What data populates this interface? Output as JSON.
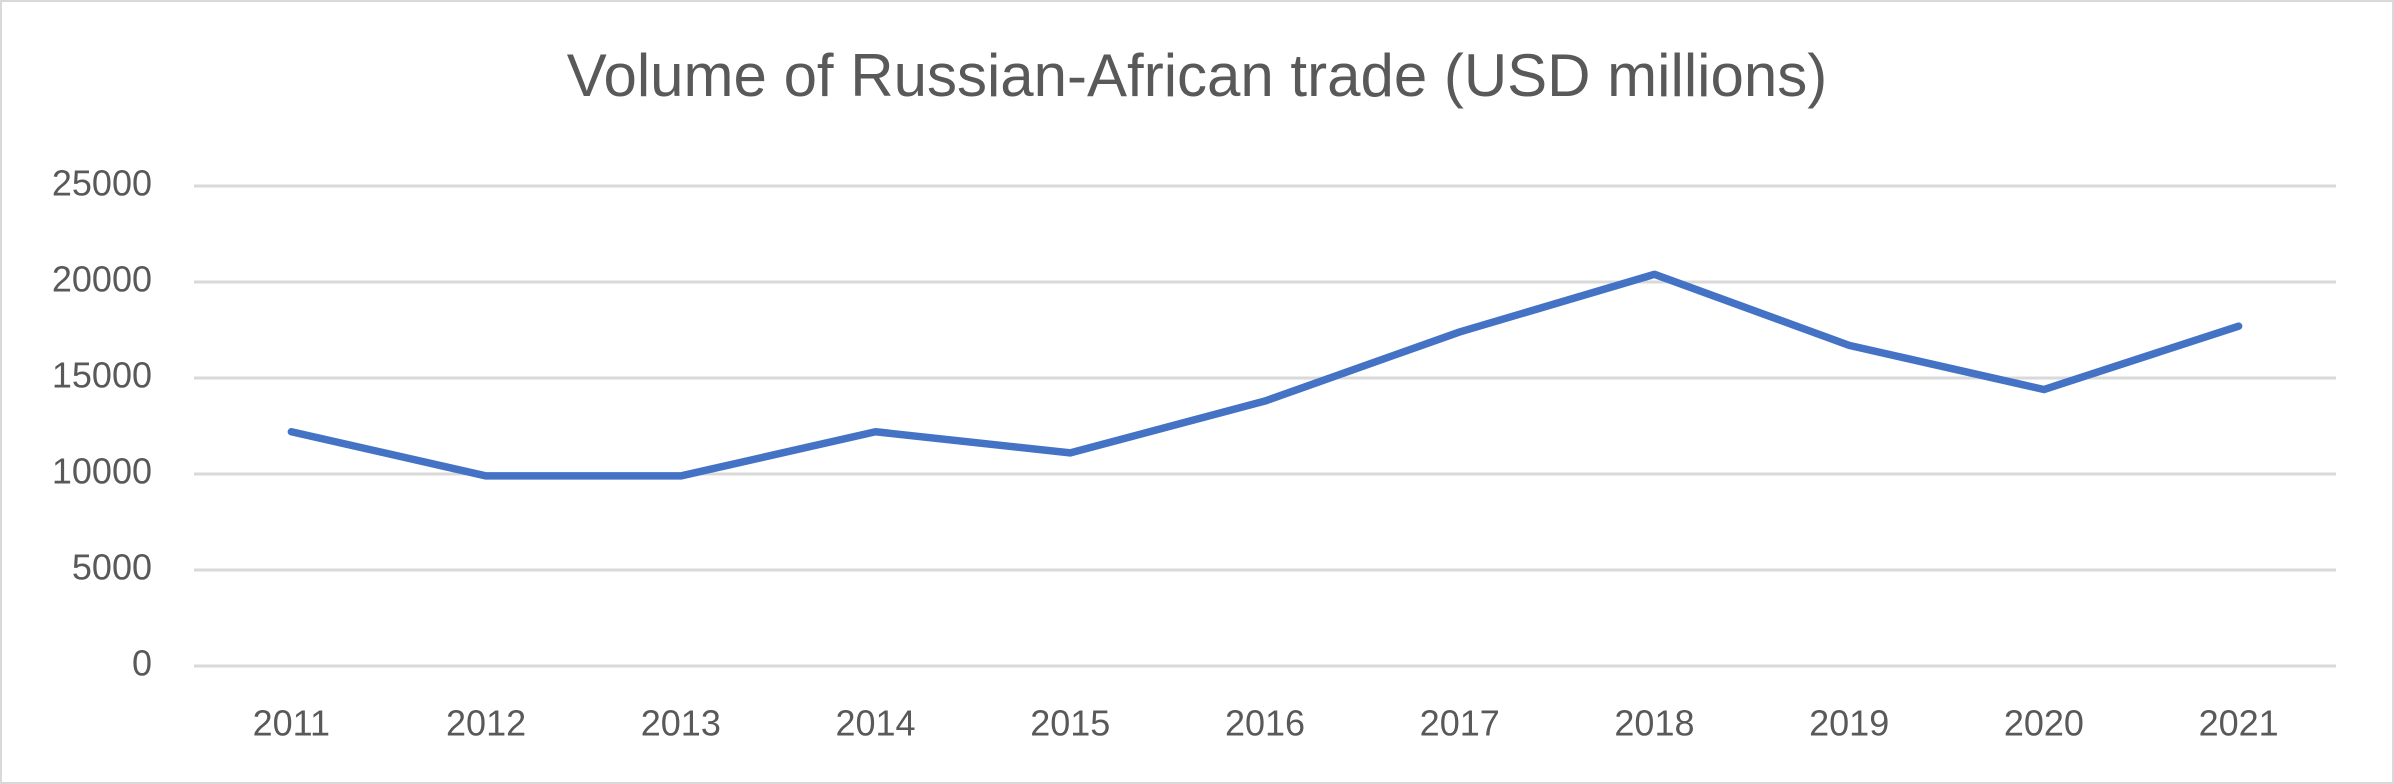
{
  "chart_data": {
    "type": "line",
    "title": "Volume of Russian-African trade (USD millions)",
    "categories": [
      "2011",
      "2012",
      "2013",
      "2014",
      "2015",
      "2016",
      "2017",
      "2018",
      "2019",
      "2020",
      "2021"
    ],
    "values": [
      12200,
      9900,
      9900,
      12200,
      11100,
      13800,
      17400,
      20400,
      16700,
      14400,
      17700
    ],
    "color": "#4472c4",
    "ylim": [
      0,
      25000
    ],
    "yticks": [
      0,
      5000,
      10000,
      15000,
      20000,
      25000
    ],
    "grid": true
  }
}
